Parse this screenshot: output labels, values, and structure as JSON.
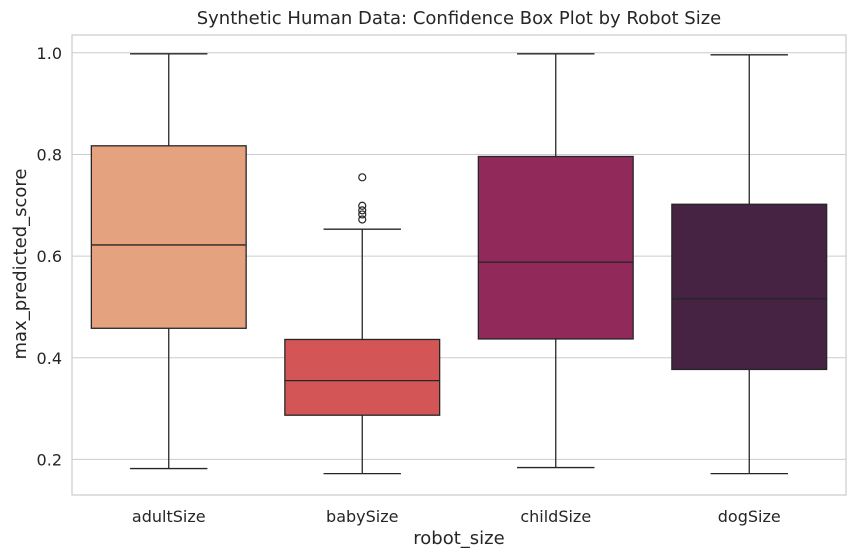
{
  "chart_data": {
    "type": "box",
    "title": "Synthetic Human Data: Confidence Box Plot by Robot Size",
    "xlabel": "robot_size",
    "ylabel": "max_predicted_score",
    "ylim": [
      0.13,
      1.035
    ],
    "yticks": [
      "0.2",
      "0.4",
      "0.6",
      "0.8",
      "1.0"
    ],
    "grid": "horizontal",
    "legend": "none",
    "categories": [
      "adultSize",
      "babySize",
      "childSize",
      "dogSize"
    ],
    "series": [
      {
        "category": "adultSize",
        "whisker_low": 0.182,
        "q1": 0.458,
        "median": 0.622,
        "q3": 0.817,
        "whisker_high": 0.998,
        "outliers": [],
        "color": "#e5a27f"
      },
      {
        "category": "babySize",
        "whisker_low": 0.172,
        "q1": 0.287,
        "median": 0.355,
        "q3": 0.436,
        "whisker_high": 0.653,
        "outliers": [
          0.672,
          0.682,
          0.69,
          0.699,
          0.755
        ],
        "color": "#d35556"
      },
      {
        "category": "childSize",
        "whisker_low": 0.184,
        "q1": 0.437,
        "median": 0.588,
        "q3": 0.796,
        "whisker_high": 0.998,
        "outliers": [],
        "color": "#912a5a"
      },
      {
        "category": "dogSize",
        "whisker_low": 0.172,
        "q1": 0.377,
        "median": 0.516,
        "q3": 0.702,
        "whisker_high": 0.996,
        "outliers": [],
        "color": "#462343"
      }
    ]
  }
}
